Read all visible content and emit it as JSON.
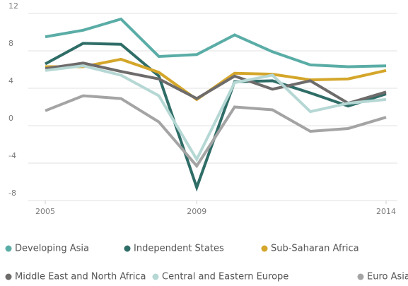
{
  "chart_data": {
    "type": "line",
    "x": [
      2005,
      2006,
      2007,
      2008,
      2009,
      2010,
      2011,
      2012,
      2013,
      2014
    ],
    "xlim": [
      2005,
      2014
    ],
    "xticks": [
      2005,
      2009,
      2014
    ],
    "ylim": [
      -8,
      12
    ],
    "yticks": [
      12,
      8,
      4,
      0,
      -4,
      -8
    ],
    "grid": true,
    "series": [
      {
        "name": "Developing Asia",
        "color": "#5aada6",
        "values": [
          9.5,
          10.2,
          11.4,
          7.4,
          7.6,
          9.7,
          7.9,
          6.5,
          6.3,
          6.4
        ]
      },
      {
        "name": "Independent States",
        "color": "#2f6d67",
        "values": [
          6.6,
          8.8,
          8.7,
          5.3,
          -6.6,
          4.7,
          4.8,
          3.5,
          2.1,
          3.4
        ]
      },
      {
        "name": "Sub-Saharan Africa",
        "color": "#d4a62a",
        "values": [
          6.3,
          6.3,
          7.1,
          5.7,
          2.8,
          5.6,
          5.5,
          4.9,
          5.0,
          5.9
        ]
      },
      {
        "name": "Middle East and North Africa",
        "color": "#6e6b6b",
        "values": [
          6.1,
          6.7,
          5.8,
          5.0,
          2.9,
          5.3,
          3.9,
          4.8,
          2.4,
          3.6
        ]
      },
      {
        "name": "Central and Eastern Europe",
        "color": "#b6d8d5",
        "values": [
          5.9,
          6.4,
          5.4,
          3.2,
          -3.6,
          4.6,
          5.4,
          1.5,
          2.4,
          2.8
        ]
      },
      {
        "name": "Euro Asia",
        "color": "#a4a4a4",
        "values": [
          1.6,
          3.2,
          2.9,
          0.4,
          -4.3,
          2.0,
          1.7,
          -0.6,
          -0.3,
          0.9
        ]
      }
    ]
  }
}
